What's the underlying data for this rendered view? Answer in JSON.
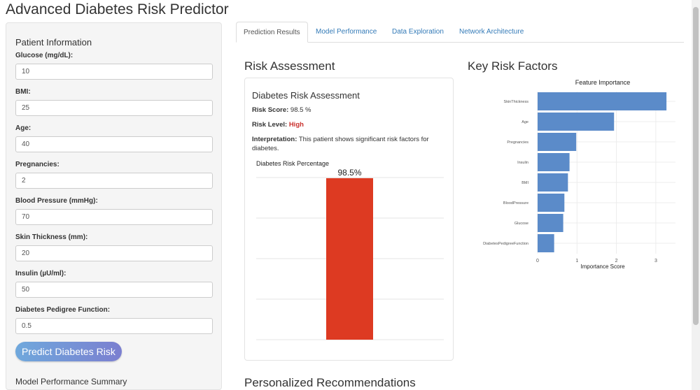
{
  "app": {
    "title": "Advanced Diabetes Risk Predictor"
  },
  "sidebar": {
    "heading": "Patient Information",
    "fields": [
      {
        "label": "Glucose (mg/dL):",
        "value": "10"
      },
      {
        "label": "BMI:",
        "value": "25"
      },
      {
        "label": "Age:",
        "value": "40"
      },
      {
        "label": "Pregnancies:",
        "value": "2"
      },
      {
        "label": "Blood Pressure (mmHg):",
        "value": "70"
      },
      {
        "label": "Skin Thickness (mm):",
        "value": "20"
      },
      {
        "label": "Insulin (µU/ml):",
        "value": "50"
      },
      {
        "label": "Diabetes Pedigree Function:",
        "value": "0.5"
      }
    ],
    "predict_label": "Predict Diabetes Risk",
    "summary_heading": "Model Performance Summary"
  },
  "tabs": [
    "Prediction Results",
    "Model Performance",
    "Data Exploration",
    "Network Architecture"
  ],
  "risk": {
    "heading": "Risk Assessment",
    "card_title": "Diabetes Risk Assessment",
    "score_label": "Risk Score:",
    "score_value": "98.5 %",
    "level_label": "Risk Level:",
    "level_value": "High",
    "interp_label": "Interpretation:",
    "interp_value": "This patient shows significant risk factors for diabetes.",
    "chart_title": "Diabetes Risk Percentage",
    "bar_label": "98.5%",
    "bar_value": 98.5,
    "bar_color": "#dd3a22"
  },
  "factors": {
    "heading": "Key Risk Factors"
  },
  "recommend": {
    "heading": "Personalized Recommendations"
  },
  "chart_data": {
    "type": "bar",
    "orientation": "horizontal",
    "title": "Feature Importance",
    "xlabel": "Importance Score",
    "ylabel": "",
    "categories": [
      "SkinThickness",
      "Age",
      "Pregnancies",
      "Insulin",
      "BMI",
      "BloodPressure",
      "Glucose",
      "DiabetesPedigreeFunction"
    ],
    "values": [
      3.27,
      1.94,
      0.98,
      0.81,
      0.77,
      0.68,
      0.65,
      0.42
    ],
    "xticks": [
      "0",
      "1",
      "2",
      "3"
    ],
    "xlim": [
      0,
      3.45
    ],
    "color": "#5b8bc9",
    "grid": true
  }
}
